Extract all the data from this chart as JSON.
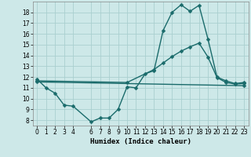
{
  "xlabel": "Humidex (Indice chaleur)",
  "ylabel": "",
  "background_color": "#cde8e8",
  "grid_color": "#aacfcf",
  "line_color": "#1a6b6b",
  "xlim": [
    -0.5,
    23.5
  ],
  "ylim": [
    7.5,
    19.0
  ],
  "yticks": [
    8,
    9,
    10,
    11,
    12,
    13,
    14,
    15,
    16,
    17,
    18
  ],
  "xticks": [
    0,
    1,
    2,
    3,
    4,
    6,
    7,
    8,
    9,
    10,
    11,
    12,
    13,
    14,
    15,
    16,
    17,
    18,
    19,
    20,
    21,
    22,
    23
  ],
  "line1_x": [
    0,
    1,
    2,
    3,
    4,
    6,
    7,
    8,
    9,
    10,
    11,
    12,
    13,
    14,
    15,
    16,
    17,
    18,
    19,
    20,
    21,
    22,
    23
  ],
  "line1_y": [
    11.8,
    11.0,
    10.5,
    9.4,
    9.3,
    7.85,
    8.2,
    8.2,
    9.0,
    11.1,
    11.0,
    12.3,
    12.6,
    16.3,
    18.0,
    18.7,
    18.1,
    18.65,
    15.5,
    12.0,
    11.65,
    11.4,
    11.5
  ],
  "line2_x": [
    0,
    10,
    13,
    14,
    15,
    16,
    17,
    18,
    19,
    20,
    21,
    22,
    23
  ],
  "line2_y": [
    11.65,
    11.5,
    12.7,
    13.3,
    13.9,
    14.4,
    14.8,
    15.15,
    13.85,
    11.95,
    11.5,
    11.35,
    11.4
  ],
  "line3_x": [
    0,
    23
  ],
  "line3_y": [
    11.55,
    11.2
  ],
  "marker_size": 2.5,
  "linewidth": 1.0
}
